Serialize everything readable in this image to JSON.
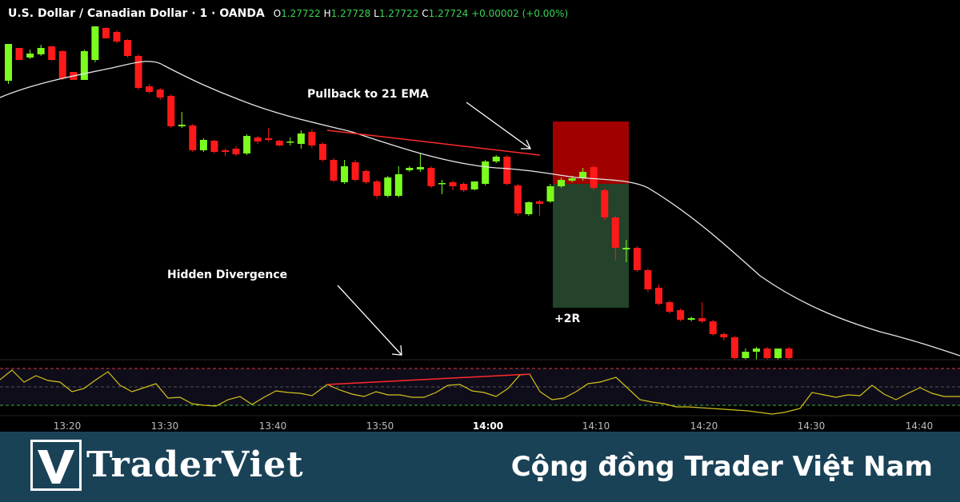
{
  "header": {
    "symbol": "U.S. Dollar / Canadian Dollar · 1 · OANDA",
    "open": "1.27722",
    "high": "1.27728",
    "low": "1.27722",
    "close": "1.27724",
    "change": "+0.00002 (+0.00%)"
  },
  "annotations": {
    "pullback": "Pullback to 21 EMA",
    "divergence": "Hidden Divergence",
    "target": "+2R"
  },
  "footer": {
    "brand": "TraderViet",
    "tagline": "Cộng đồng Trader Việt Nam"
  },
  "colors": {
    "up": "#7cfc1e",
    "down": "#ff1a1a",
    "ema": "#e6e6e6",
    "rsi": "#d4c21a",
    "stop_zone": "#a10000",
    "target_zone": "#24432a",
    "footer_bg": "#1a4257"
  },
  "chart_data": {
    "type": "candlestick",
    "time_labels": [
      "13:20",
      "13:30",
      "13:40",
      "13:50",
      "14:00",
      "14:10",
      "14:20",
      "14:30",
      "14:40"
    ],
    "candles": [
      [
        55,
        101,
        55,
        105,
        "up"
      ],
      [
        60,
        60,
        75,
        75,
        "down"
      ],
      [
        62,
        72,
        67,
        74,
        "up"
      ],
      [
        56,
        68,
        60,
        70,
        "up"
      ],
      [
        57,
        58,
        75,
        76,
        "down"
      ],
      [
        63,
        64,
        98,
        100,
        "down"
      ],
      [
        90,
        90,
        100,
        100,
        "down"
      ],
      [
        62,
        100,
        64,
        100,
        "up"
      ],
      [
        33,
        75,
        33,
        78,
        "up"
      ],
      [
        34,
        35,
        48,
        48,
        "down"
      ],
      [
        38,
        40,
        52,
        54,
        "down"
      ],
      [
        49,
        50,
        70,
        72,
        "down"
      ],
      [
        68,
        70,
        110,
        112,
        "down"
      ],
      [
        105,
        108,
        115,
        117,
        "down"
      ],
      [
        110,
        112,
        122,
        125,
        "down"
      ],
      [
        118,
        120,
        158,
        160,
        "down"
      ],
      [
        140,
        158,
        156,
        160,
        "up"
      ],
      [
        155,
        157,
        188,
        190,
        "down"
      ],
      [
        173,
        188,
        175,
        190,
        "up"
      ],
      [
        175,
        176,
        190,
        192,
        "down"
      ],
      [
        186,
        188,
        190,
        195,
        "down"
      ],
      [
        183,
        186,
        193,
        195,
        "down"
      ],
      [
        168,
        192,
        170,
        194,
        "up"
      ],
      [
        170,
        172,
        177,
        180,
        "down"
      ],
      [
        160,
        175,
        173,
        177,
        "down"
      ],
      [
        175,
        176,
        182,
        183,
        "down"
      ],
      [
        172,
        177,
        178,
        182,
        "up"
      ],
      [
        163,
        180,
        167,
        186,
        "up"
      ],
      [
        162,
        165,
        182,
        185,
        "down"
      ],
      [
        178,
        180,
        200,
        202,
        "down"
      ],
      [
        198,
        200,
        226,
        228,
        "down"
      ],
      [
        200,
        228,
        208,
        230,
        "up"
      ],
      [
        200,
        203,
        225,
        227,
        "down"
      ],
      [
        212,
        214,
        228,
        230,
        "down"
      ],
      [
        225,
        227,
        245,
        248,
        "down"
      ],
      [
        220,
        222,
        245,
        247,
        "up"
      ],
      [
        208,
        245,
        218,
        247,
        "up"
      ],
      [
        208,
        210,
        213,
        215,
        "up"
      ],
      [
        192,
        212,
        209,
        215,
        "up"
      ],
      [
        208,
        210,
        233,
        235,
        "down"
      ],
      [
        225,
        229,
        229,
        243,
        "up"
      ],
      [
        226,
        228,
        233,
        238,
        "down"
      ],
      [
        228,
        230,
        238,
        240,
        "down"
      ],
      [
        227,
        237,
        227,
        238,
        "up"
      ],
      [
        200,
        230,
        202,
        232,
        "up"
      ],
      [
        194,
        202,
        196,
        204,
        "up"
      ],
      [
        194,
        196,
        230,
        232,
        "down"
      ],
      [
        230,
        232,
        267,
        270,
        "down"
      ],
      [
        252,
        268,
        253,
        270,
        "up"
      ],
      [
        250,
        252,
        255,
        270,
        "down"
      ],
      [
        230,
        252,
        233,
        254,
        "up"
      ],
      [
        222,
        233,
        225,
        235,
        "up"
      ],
      [
        220,
        226,
        223,
        228,
        "up"
      ],
      [
        210,
        223,
        215,
        226,
        "up"
      ],
      [
        207,
        209,
        235,
        238,
        "down"
      ],
      [
        236,
        238,
        272,
        275,
        "down"
      ],
      [
        270,
        272,
        310,
        326,
        "down"
      ],
      [
        300,
        310,
        312,
        328,
        "up"
      ],
      [
        308,
        310,
        338,
        340,
        "down"
      ],
      [
        336,
        338,
        362,
        365,
        "down"
      ],
      [
        356,
        360,
        380,
        382,
        "down"
      ],
      [
        376,
        378,
        390,
        392,
        "down"
      ],
      [
        386,
        388,
        400,
        402,
        "down"
      ],
      [
        396,
        398,
        400,
        402,
        "up"
      ],
      [
        378,
        398,
        402,
        404,
        "down"
      ],
      [
        400,
        402,
        418,
        420,
        "down"
      ],
      [
        416,
        418,
        422,
        426,
        "down"
      ],
      [
        420,
        422,
        448,
        450,
        "down"
      ],
      [
        436,
        448,
        440,
        450,
        "up"
      ],
      [
        434,
        436,
        440,
        450,
        "up"
      ],
      [
        434,
        436,
        448,
        450,
        "down"
      ],
      [
        436,
        448,
        436,
        450,
        "up"
      ],
      [
        434,
        436,
        448,
        450,
        "down"
      ]
    ]
  }
}
